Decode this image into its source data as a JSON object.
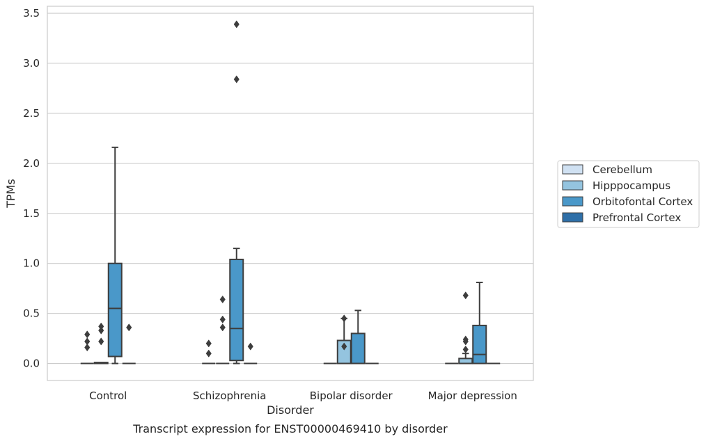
{
  "chart_data": {
    "type": "box",
    "xlabel": "Disorder",
    "ylabel": "TPMs",
    "caption": "Transcript expression for ENST00000469410 by disorder",
    "ylim": [
      -0.17,
      3.57
    ],
    "yticks": [
      "0.0",
      "0.5",
      "1.0",
      "1.5",
      "2.0",
      "2.5",
      "3.0",
      "3.5"
    ],
    "ytick_values": [
      0,
      0.5,
      1.0,
      1.5,
      2.0,
      2.5,
      3.0,
      3.5
    ],
    "grid": "horizontal",
    "legend_position": "right",
    "categories": [
      "Control",
      "Schizophrenia",
      "Bipolar disorder",
      "Major depression"
    ],
    "series": [
      {
        "name": "Cerebellum",
        "color": "#d0e1f2",
        "boxes": [
          {
            "q1": 0,
            "median": 0,
            "q3": 0,
            "whisker_low": 0,
            "whisker_high": 0,
            "outliers": [
              0.16,
              0.22,
              0.29
            ]
          },
          {
            "q1": 0,
            "median": 0,
            "q3": 0,
            "whisker_low": 0,
            "whisker_high": 0,
            "outliers": [
              0.1,
              0.2
            ]
          },
          {
            "q1": 0,
            "median": 0,
            "q3": 0,
            "whisker_low": 0,
            "whisker_high": 0,
            "outliers": []
          },
          {
            "q1": 0,
            "median": 0,
            "q3": 0,
            "whisker_low": 0,
            "whisker_high": 0,
            "outliers": []
          }
        ]
      },
      {
        "name": "Hipppocampus",
        "color": "#94c4df",
        "boxes": [
          {
            "q1": 0,
            "median": 0,
            "q3": 0.01,
            "whisker_low": 0,
            "whisker_high": 0.01,
            "outliers": [
              0.22,
              0.33,
              0.37
            ]
          },
          {
            "q1": 0,
            "median": 0,
            "q3": 0,
            "whisker_low": 0,
            "whisker_high": 0,
            "outliers": [
              0.36,
              0.44,
              0.64
            ]
          },
          {
            "q1": 0,
            "median": 0,
            "q3": 0.23,
            "whisker_low": 0,
            "whisker_high": 0.45,
            "outliers": [
              0.17,
              0.45
            ]
          },
          {
            "q1": 0,
            "median": 0,
            "q3": 0.05,
            "whisker_low": 0,
            "whisker_high": 0.1,
            "outliers": [
              0.14,
              0.22,
              0.24,
              0.68
            ]
          }
        ]
      },
      {
        "name": "Orbitofontal Cortex",
        "color": "#4a98c9",
        "boxes": [
          {
            "q1": 0.07,
            "median": 0.55,
            "q3": 1.0,
            "whisker_low": 0,
            "whisker_high": 2.16,
            "outliers": []
          },
          {
            "q1": 0.03,
            "median": 0.35,
            "q3": 1.04,
            "whisker_low": 0,
            "whisker_high": 1.15,
            "outliers": [
              2.84,
              3.39
            ]
          },
          {
            "q1": 0,
            "median": 0,
            "q3": 0.3,
            "whisker_low": 0,
            "whisker_high": 0.53,
            "outliers": []
          },
          {
            "q1": 0,
            "median": 0.09,
            "q3": 0.38,
            "whisker_low": 0,
            "whisker_high": 0.81,
            "outliers": []
          }
        ]
      },
      {
        "name": "Prefrontal Cortex",
        "color": "#2e6fa8",
        "boxes": [
          {
            "q1": 0,
            "median": 0,
            "q3": 0,
            "whisker_low": 0,
            "whisker_high": 0,
            "outliers": [
              0.36
            ]
          },
          {
            "q1": 0,
            "median": 0,
            "q3": 0,
            "whisker_low": 0,
            "whisker_high": 0,
            "outliers": [
              0.17
            ]
          },
          {
            "q1": 0,
            "median": 0,
            "q3": 0,
            "whisker_low": 0,
            "whisker_high": 0,
            "outliers": []
          },
          {
            "q1": 0,
            "median": 0,
            "q3": 0,
            "whisker_low": 0,
            "whisker_high": 0,
            "outliers": []
          }
        ]
      }
    ]
  }
}
